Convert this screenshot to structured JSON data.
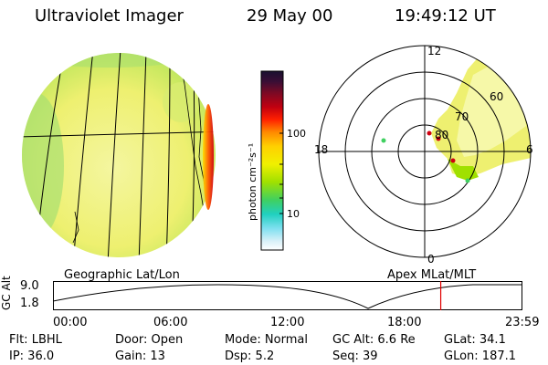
{
  "header": {
    "instrument": "Ultraviolet Imager",
    "date": "29 May 00",
    "time": "19:49:12 UT"
  },
  "colorbar": {
    "unit_label": "photon cm⁻²s⁻¹",
    "ticks": [
      "100",
      "10"
    ],
    "colors": [
      "#1a1030",
      "#3b0e35",
      "#7a0a25",
      "#c00010",
      "#ff2000",
      "#ff8800",
      "#ffd000",
      "#f0f000",
      "#a0e000",
      "#40d060",
      "#20d0c0",
      "#80e0f0",
      "#d8f0f8",
      "#ffffff"
    ]
  },
  "polar_plot": {
    "mlt_labels": [
      "12",
      "18",
      "6",
      "0"
    ],
    "lat_labels": [
      "80",
      "70",
      "60"
    ]
  },
  "timeline": {
    "left_caption": "Geographic Lat/Lon",
    "right_caption": "Apex MLat/MLT",
    "y_axis_label": "GC Alt",
    "y_ticks": [
      "9.0",
      "1.8"
    ],
    "x_ticks": [
      "00:00",
      "06:00",
      "12:00",
      "18:00",
      "23:59"
    ],
    "current_time_fraction": 0.826
  },
  "status": {
    "row1": [
      {
        "label": "Flt: LBHL"
      },
      {
        "label": "Door: Open"
      },
      {
        "label": "Mode: Normal"
      },
      {
        "label": "GC Alt: 6.6 Re"
      },
      {
        "label": "GLat:  34.1"
      }
    ],
    "row2": [
      {
        "label": "IP: 36.0"
      },
      {
        "label": "Gain: 13"
      },
      {
        "label": "Dsp:    5.2"
      },
      {
        "label": "Seq: 39"
      },
      {
        "label": "GLon: 187.1"
      }
    ]
  }
}
